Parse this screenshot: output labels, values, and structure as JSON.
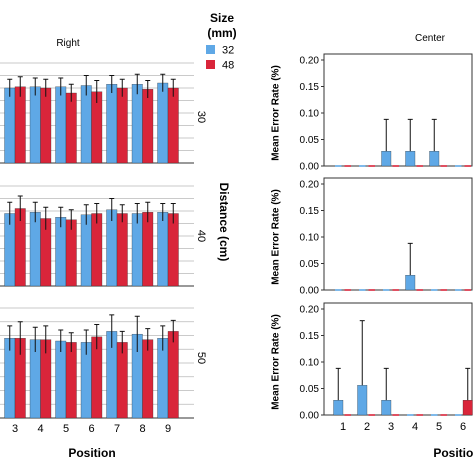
{
  "figure": {
    "legend": {
      "title_line1": "Size",
      "title_line2": "(mm)",
      "items": [
        {
          "label": "32",
          "color": "#5fa8e6"
        },
        {
          "label": "48",
          "color": "#d9253a"
        }
      ]
    },
    "left_column_title": "Right",
    "right_column_title": "Center",
    "row_axis_label": "Distance (cm)",
    "row_labels": [
      "30",
      "40",
      "50"
    ],
    "x_axis_label": "Position",
    "right_y_axis_label": "Mean Error Rate (%)"
  },
  "chart_data": [
    {
      "type": "bar",
      "title": "Right",
      "row": "30",
      "categories": [
        "3",
        "4",
        "5",
        "6",
        "7",
        "8",
        "9"
      ],
      "series": [
        {
          "name": "32",
          "values": [
            0.6,
            0.61,
            0.61,
            0.62,
            0.63,
            0.63,
            0.64
          ],
          "error": [
            0.07,
            0.07,
            0.07,
            0.08,
            0.07,
            0.08,
            0.07
          ]
        },
        {
          "name": "48",
          "values": [
            0.61,
            0.6,
            0.56,
            0.57,
            0.6,
            0.59,
            0.6
          ],
          "error": [
            0.08,
            0.07,
            0.07,
            0.09,
            0.07,
            0.07,
            0.07
          ]
        }
      ],
      "grid": true
    },
    {
      "type": "bar",
      "title": "Right",
      "row": "40",
      "categories": [
        "3",
        "4",
        "5",
        "6",
        "7",
        "8",
        "9"
      ],
      "series": [
        {
          "name": "32",
          "values": [
            0.58,
            0.59,
            0.55,
            0.57,
            0.61,
            0.58,
            0.59
          ],
          "error": [
            0.09,
            0.08,
            0.08,
            0.08,
            0.09,
            0.08,
            0.07
          ]
        },
        {
          "name": "48",
          "values": [
            0.62,
            0.54,
            0.53,
            0.58,
            0.58,
            0.59,
            0.58
          ],
          "error": [
            0.1,
            0.09,
            0.08,
            0.08,
            0.07,
            0.08,
            0.08
          ]
        }
      ],
      "grid": true
    },
    {
      "type": "bar",
      "title": "Right",
      "row": "50",
      "categories": [
        "3",
        "4",
        "5",
        "6",
        "7",
        "8",
        "9"
      ],
      "series": [
        {
          "name": "32",
          "values": [
            0.58,
            0.57,
            0.56,
            0.55,
            0.63,
            0.61,
            0.58
          ],
          "error": [
            0.09,
            0.09,
            0.08,
            0.09,
            0.12,
            0.13,
            0.09
          ]
        },
        {
          "name": "48",
          "values": [
            0.58,
            0.57,
            0.55,
            0.59,
            0.55,
            0.57,
            0.63
          ],
          "error": [
            0.12,
            0.1,
            0.07,
            0.09,
            0.08,
            0.08,
            0.08
          ]
        }
      ],
      "grid": true
    },
    {
      "type": "bar",
      "title": "Center",
      "row": "30",
      "ylabel": "Mean Error Rate (%)",
      "categories": [
        "1",
        "2",
        "3",
        "4",
        "5",
        "6"
      ],
      "ylim": [
        0,
        0.2
      ],
      "yticks": [
        "0.00",
        "0.05",
        "0.10",
        "0.15",
        "0.20"
      ],
      "series": [
        {
          "name": "32",
          "values": [
            0,
            0,
            0.028,
            0.028,
            0.028,
            0
          ],
          "error": [
            0,
            0,
            0.06,
            0.06,
            0.06,
            0
          ]
        },
        {
          "name": "48",
          "values": [
            0,
            0,
            0,
            0,
            0,
            0
          ],
          "error": [
            0,
            0,
            0,
            0,
            0,
            0
          ]
        }
      ]
    },
    {
      "type": "bar",
      "title": "Center",
      "row": "40",
      "ylabel": "Mean Error Rate (%)",
      "categories": [
        "1",
        "2",
        "3",
        "4",
        "5",
        "6"
      ],
      "ylim": [
        0,
        0.2
      ],
      "yticks": [
        "0.00",
        "0.05",
        "0.10",
        "0.15",
        "0.20"
      ],
      "series": [
        {
          "name": "32",
          "values": [
            0,
            0,
            0,
            0.028,
            0,
            0
          ],
          "error": [
            0,
            0,
            0,
            0.06,
            0,
            0
          ]
        },
        {
          "name": "48",
          "values": [
            0,
            0,
            0,
            0,
            0,
            0
          ],
          "error": [
            0,
            0,
            0,
            0,
            0,
            0
          ]
        }
      ]
    },
    {
      "type": "bar",
      "title": "Center",
      "row": "50",
      "ylabel": "Mean Error Rate (%)",
      "xlabel": "Position",
      "categories": [
        "1",
        "2",
        "3",
        "4",
        "5",
        "6"
      ],
      "ylim": [
        0,
        0.2
      ],
      "yticks": [
        "0.00",
        "0.05",
        "0.10",
        "0.15",
        "0.20"
      ],
      "series": [
        {
          "name": "32",
          "values": [
            0.028,
            0.056,
            0.028,
            0,
            0,
            0
          ],
          "error": [
            0.06,
            0.122,
            0.06,
            0,
            0,
            0
          ]
        },
        {
          "name": "48",
          "values": [
            0,
            0,
            0,
            0,
            0,
            0.028
          ],
          "error": [
            0,
            0,
            0,
            0,
            0,
            0.06
          ]
        }
      ]
    }
  ]
}
